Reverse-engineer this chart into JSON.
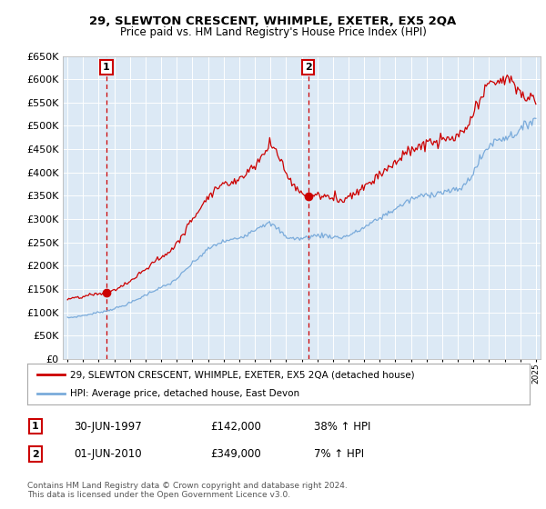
{
  "title": "29, SLEWTON CRESCENT, WHIMPLE, EXETER, EX5 2QA",
  "subtitle": "Price paid vs. HM Land Registry's House Price Index (HPI)",
  "plot_bg_color": "#dce9f5",
  "grid_color": "#ffffff",
  "line1_color": "#cc0000",
  "line2_color": "#7aabdb",
  "sale1_date": 1997.5,
  "sale1_price": 142000,
  "sale1_label": "1",
  "sale2_date": 2010.42,
  "sale2_price": 349000,
  "sale2_label": "2",
  "legend_line1": "29, SLEWTON CRESCENT, WHIMPLE, EXETER, EX5 2QA (detached house)",
  "legend_line2": "HPI: Average price, detached house, East Devon",
  "table_row1": [
    "1",
    "30-JUN-1997",
    "£142,000",
    "38% ↑ HPI"
  ],
  "table_row2": [
    "2",
    "01-JUN-2010",
    "£349,000",
    "7% ↑ HPI"
  ],
  "footnote1": "Contains HM Land Registry data © Crown copyright and database right 2024.",
  "footnote2": "This data is licensed under the Open Government Licence v3.0.",
  "ylim_min": 0,
  "ylim_max": 650000,
  "ytick_step": 50000,
  "xmin": 1994.7,
  "xmax": 2025.3
}
